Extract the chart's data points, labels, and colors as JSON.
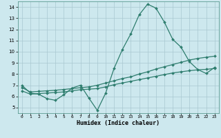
{
  "title": "",
  "xlabel": "Humidex (Indice chaleur)",
  "ylabel": "",
  "xlim": [
    -0.5,
    23.5
  ],
  "ylim": [
    4.5,
    14.5
  ],
  "yticks": [
    5,
    6,
    7,
    8,
    9,
    10,
    11,
    12,
    13,
    14
  ],
  "xticks": [
    0,
    1,
    2,
    3,
    4,
    5,
    6,
    7,
    8,
    9,
    10,
    11,
    12,
    13,
    14,
    15,
    16,
    17,
    18,
    19,
    20,
    21,
    22,
    23
  ],
  "line_color": "#2e7d6e",
  "bg_color": "#cde8ee",
  "grid_color": "#a8c8d0",
  "line1_x": [
    0,
    1,
    2,
    3,
    4,
    5,
    6,
    7,
    8,
    9,
    10,
    11,
    12,
    13,
    14,
    15,
    16,
    17,
    18,
    19,
    20,
    21,
    22,
    23
  ],
  "line1_y": [
    7.0,
    6.3,
    6.2,
    5.8,
    5.65,
    6.15,
    6.75,
    7.0,
    5.85,
    4.75,
    6.3,
    8.5,
    10.2,
    11.6,
    13.3,
    14.25,
    13.9,
    12.65,
    11.1,
    10.4,
    9.1,
    8.4,
    8.05,
    8.6
  ],
  "line2_x": [
    0,
    1,
    2,
    3,
    4,
    5,
    6,
    7,
    8,
    9,
    10,
    11,
    12,
    13,
    14,
    15,
    16,
    17,
    18,
    19,
    20,
    21,
    22,
    23
  ],
  "line2_y": [
    6.8,
    6.4,
    6.45,
    6.5,
    6.55,
    6.62,
    6.7,
    6.78,
    6.85,
    7.0,
    7.2,
    7.4,
    7.6,
    7.75,
    8.0,
    8.2,
    8.45,
    8.65,
    8.85,
    9.05,
    9.25,
    9.4,
    9.5,
    9.6
  ],
  "line3_x": [
    0,
    1,
    2,
    3,
    4,
    5,
    6,
    7,
    8,
    9,
    10,
    11,
    12,
    13,
    14,
    15,
    16,
    17,
    18,
    19,
    20,
    21,
    22,
    23
  ],
  "line3_y": [
    6.5,
    6.2,
    6.25,
    6.3,
    6.35,
    6.4,
    6.5,
    6.6,
    6.65,
    6.7,
    6.85,
    7.05,
    7.2,
    7.35,
    7.5,
    7.65,
    7.8,
    7.95,
    8.1,
    8.2,
    8.3,
    8.38,
    8.42,
    8.5
  ],
  "marker": "D",
  "markersize": 2.0,
  "linewidth": 0.9
}
